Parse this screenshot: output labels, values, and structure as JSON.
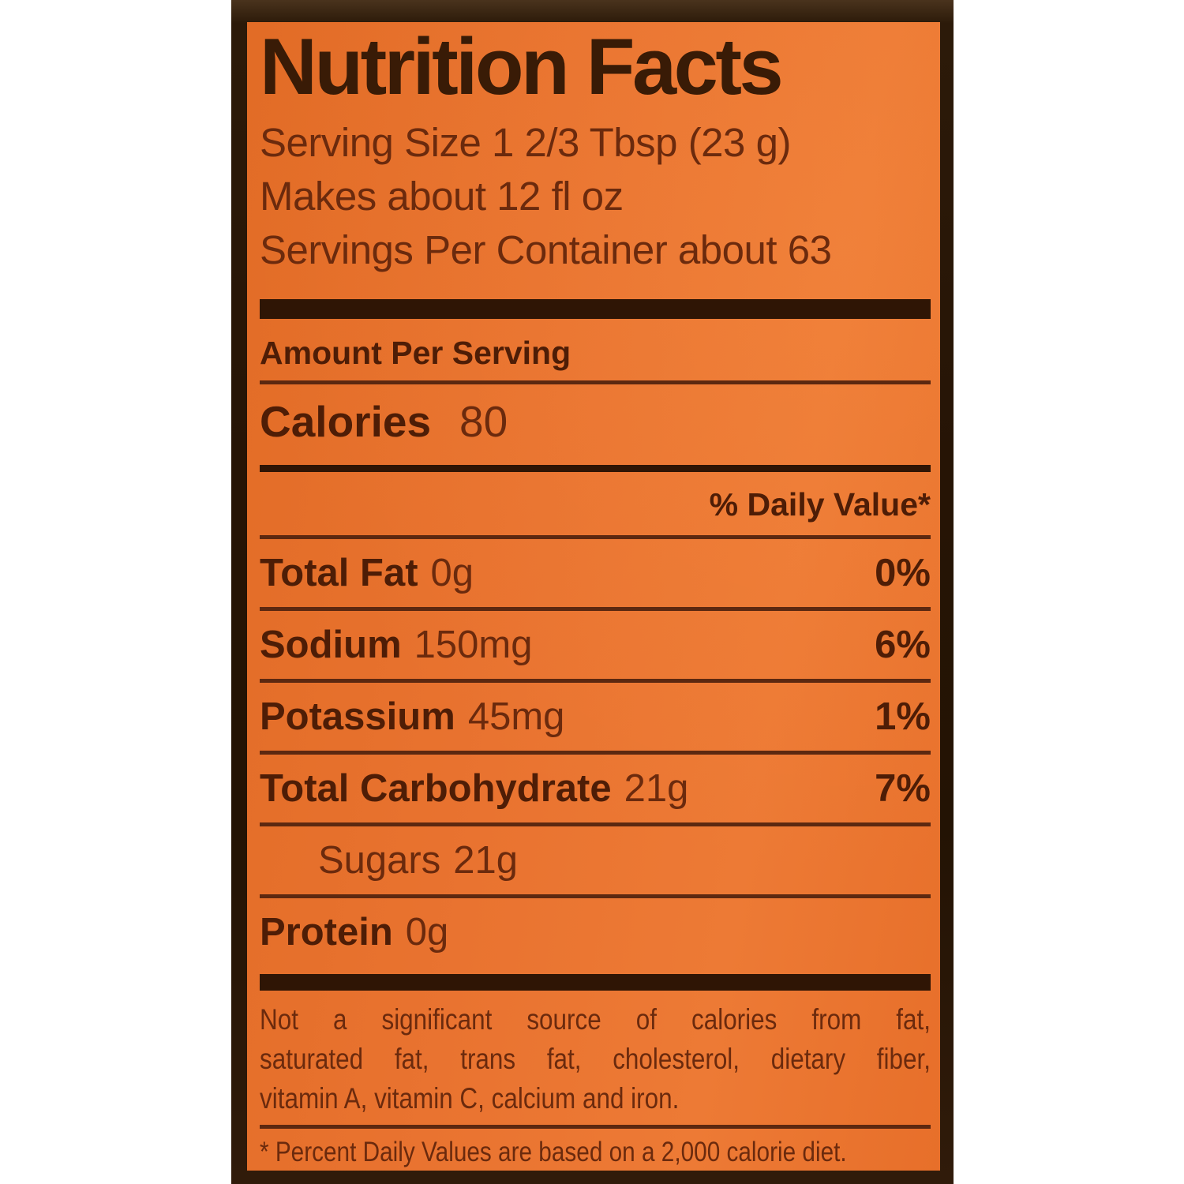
{
  "label": {
    "title": "Nutrition Facts",
    "serving_size": "Serving Size 1 2/3 Tbsp (23 g)",
    "makes": "Makes about 12 fl oz",
    "servings_per_container": "Servings Per Container about 63",
    "amount_per_serving": "Amount Per Serving",
    "calories_label": "Calories",
    "calories_value": "80",
    "daily_value_header": "% Daily Value*",
    "nutrients": [
      {
        "label": "Total Fat",
        "value": "0g",
        "dv": "0%"
      },
      {
        "label": "Sodium",
        "value": "150mg",
        "dv": "6%"
      },
      {
        "label": "Potassium",
        "value": "45mg",
        "dv": "1%"
      },
      {
        "label": "Total Carbohydrate",
        "value": "21g",
        "dv": "7%"
      },
      {
        "label": "Sugars",
        "value": "21g",
        "dv": ""
      },
      {
        "label": "Protein",
        "value": "0g",
        "dv": ""
      }
    ],
    "disclaimer_lines": [
      "Not a significant source of calories from fat,",
      "saturated fat, trans fat, cholesterol, dietary fiber,",
      "vitamin A, vitamin C, calcium and iron."
    ],
    "footnote": "* Percent Daily Values are based on a 2,000 calorie diet.",
    "colors": {
      "panel_orange": "#e97330",
      "frame_brown": "#261405",
      "title_brown": "#391b06",
      "bold_text_brown": "#4e1d06",
      "regular_text_brown": "#6b2a0d"
    }
  }
}
